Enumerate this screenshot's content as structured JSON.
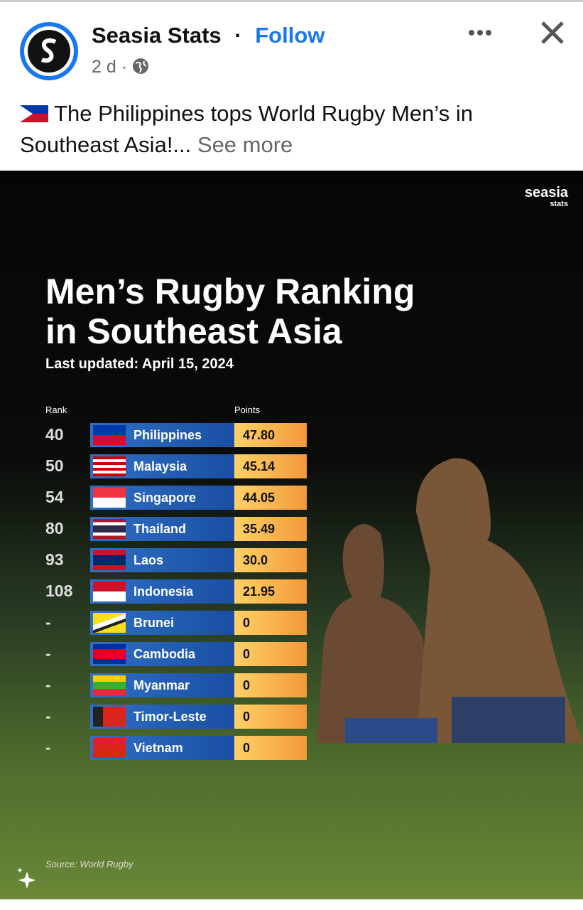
{
  "header": {
    "name": "Seasia Stats",
    "separator": "·",
    "follow": "Follow",
    "time": "2 d"
  },
  "post": {
    "text": "The Philippines tops World Rugby Men’s in Southeast Asia!...",
    "see_more": "See more"
  },
  "infographic": {
    "brand": "seasia",
    "brand_sub": "stats",
    "title_line1": "Men’s Rugby Ranking",
    "title_line2": "in Southeast Asia",
    "subtitle": "Last updated: April 15, 2024",
    "table": {
      "headers": [
        "Rank",
        "Points"
      ],
      "rows": [
        [
          "40",
          "Philippines",
          "47.80"
        ],
        [
          "50",
          "Malaysia",
          "45.14"
        ],
        [
          "54",
          "Singapore",
          "44.05"
        ],
        [
          "80",
          "Thailand",
          "35.49"
        ],
        [
          "93",
          "Laos",
          "30.0"
        ],
        [
          "108",
          "Indonesia",
          "21.95"
        ],
        [
          "-",
          "Brunei",
          "0"
        ],
        [
          "-",
          "Cambodia",
          "0"
        ],
        [
          "-",
          "Myanmar",
          "0"
        ],
        [
          "-",
          "Timor-Leste",
          "0"
        ],
        [
          "-",
          "Vietnam",
          "0"
        ]
      ]
    },
    "source": "Source: World Rugby"
  }
}
